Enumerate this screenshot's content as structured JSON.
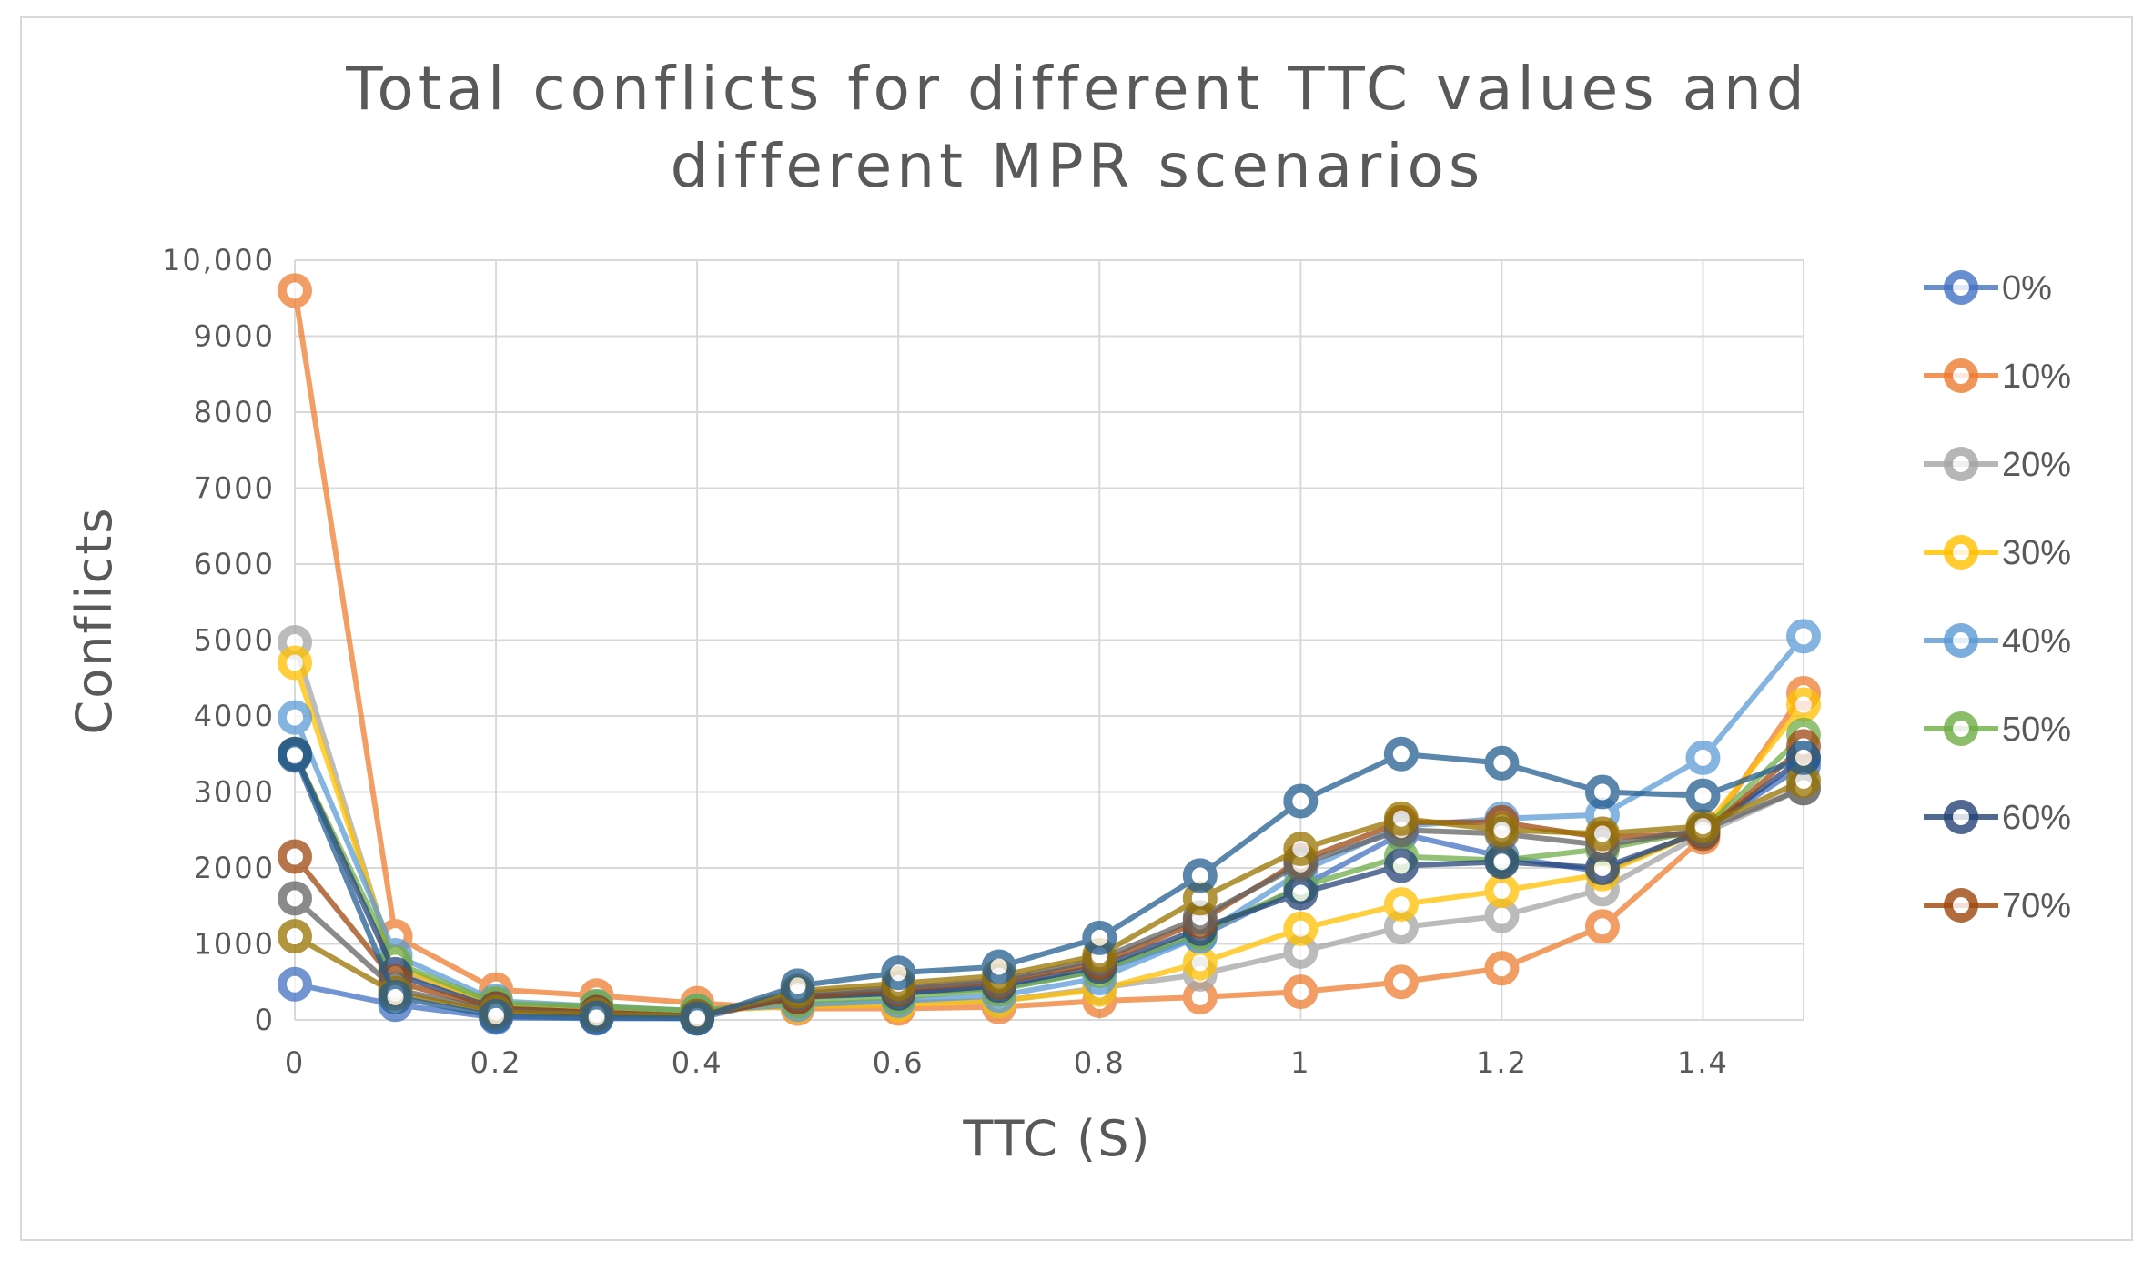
{
  "chart_data": {
    "type": "line",
    "title": "Total conflicts for different TTC values and different MPR scenarios",
    "title_lines": [
      "Total conflicts for different TTC values and",
      "different MPR scenarios"
    ],
    "xlabel": "TTC (S)",
    "ylabel": "Conflicts",
    "x": [
      0,
      0.1,
      0.2,
      0.3,
      0.4,
      0.5,
      0.6,
      0.7,
      0.8,
      0.9,
      1,
      1.1,
      1.2,
      1.3,
      1.4,
      1.5
    ],
    "xlim": [
      0,
      1.5
    ],
    "ylim": [
      0,
      10000
    ],
    "x_ticks": [
      {
        "value": 0,
        "label": "0"
      },
      {
        "value": 0.2,
        "label": "0.2"
      },
      {
        "value": 0.4,
        "label": "0.4"
      },
      {
        "value": 0.6,
        "label": "0.6"
      },
      {
        "value": 0.8,
        "label": "0.8"
      },
      {
        "value": 1,
        "label": "1"
      },
      {
        "value": 1.2,
        "label": "1.2"
      },
      {
        "value": 1.4,
        "label": "1.4"
      }
    ],
    "y_ticks": [
      {
        "value": 0,
        "label": "0"
      },
      {
        "value": 1000,
        "label": "1000"
      },
      {
        "value": 2000,
        "label": "2000"
      },
      {
        "value": 3000,
        "label": "3000"
      },
      {
        "value": 4000,
        "label": "4000"
      },
      {
        "value": 5000,
        "label": "5000"
      },
      {
        "value": 6000,
        "label": "6000"
      },
      {
        "value": 7000,
        "label": "7000"
      },
      {
        "value": 8000,
        "label": "8000"
      },
      {
        "value": 9000,
        "label": "9000"
      },
      {
        "value": 10000,
        "label": "10,000"
      }
    ],
    "grid": true,
    "legend_position": "right",
    "series": [
      {
        "name": "0%",
        "color": "#4472c4",
        "values": [
          470,
          200,
          30,
          20,
          20,
          320,
          350,
          420,
          650,
          1100,
          1750,
          2450,
          2150,
          1950,
          2500,
          3350
        ]
      },
      {
        "name": "10%",
        "color": "#ed7d31",
        "values": [
          9600,
          1100,
          400,
          320,
          220,
          150,
          150,
          170,
          250,
          300,
          370,
          500,
          680,
          1230,
          2400,
          4300
        ]
      },
      {
        "name": "20%",
        "color": "#a5a5a5",
        "values": [
          4970,
          650,
          200,
          150,
          120,
          200,
          230,
          250,
          420,
          600,
          900,
          1220,
          1370,
          1720,
          2450,
          3050
        ]
      },
      {
        "name": "30%",
        "color": "#ffc000",
        "values": [
          4700,
          700,
          200,
          150,
          120,
          180,
          200,
          250,
          400,
          750,
          1200,
          1520,
          1700,
          1920,
          2500,
          4150
        ]
      },
      {
        "name": "40%",
        "color": "#5b9bd5",
        "values": [
          3980,
          850,
          250,
          180,
          120,
          200,
          250,
          320,
          550,
          1100,
          1950,
          2550,
          2650,
          2700,
          3450,
          5050
        ]
      },
      {
        "name": "50%",
        "color": "#70ad47",
        "values": [
          3500,
          750,
          220,
          180,
          120,
          250,
          300,
          400,
          650,
          1150,
          1750,
          2150,
          2100,
          2250,
          2500,
          3750
        ]
      },
      {
        "name": "60%",
        "color": "#264478",
        "values": [
          3500,
          600,
          150,
          100,
          50,
          300,
          350,
          450,
          700,
          1200,
          1670,
          2030,
          2080,
          2000,
          2480,
          3450
        ]
      },
      {
        "name": "70%",
        "color": "#9e480e",
        "values": [
          2150,
          500,
          150,
          100,
          50,
          300,
          400,
          500,
          750,
          1300,
          2100,
          2600,
          2600,
          2400,
          2450,
          3600
        ]
      },
      {
        "color": "#636363",
        "values": [
          1600,
          400,
          120,
          80,
          50,
          350,
          420,
          520,
          800,
          1350,
          2050,
          2500,
          2450,
          2300,
          2500,
          3050
        ]
      },
      {
        "color": "#997300",
        "values": [
          1100,
          350,
          100,
          70,
          50,
          380,
          480,
          580,
          850,
          1600,
          2250,
          2650,
          2500,
          2450,
          2550,
          3150
        ]
      },
      {
        "color": "#255e91",
        "values": [
          3480,
          300,
          50,
          30,
          20,
          450,
          620,
          700,
          1080,
          1900,
          2880,
          3500,
          3380,
          3000,
          2950,
          3450
        ]
      }
    ]
  }
}
